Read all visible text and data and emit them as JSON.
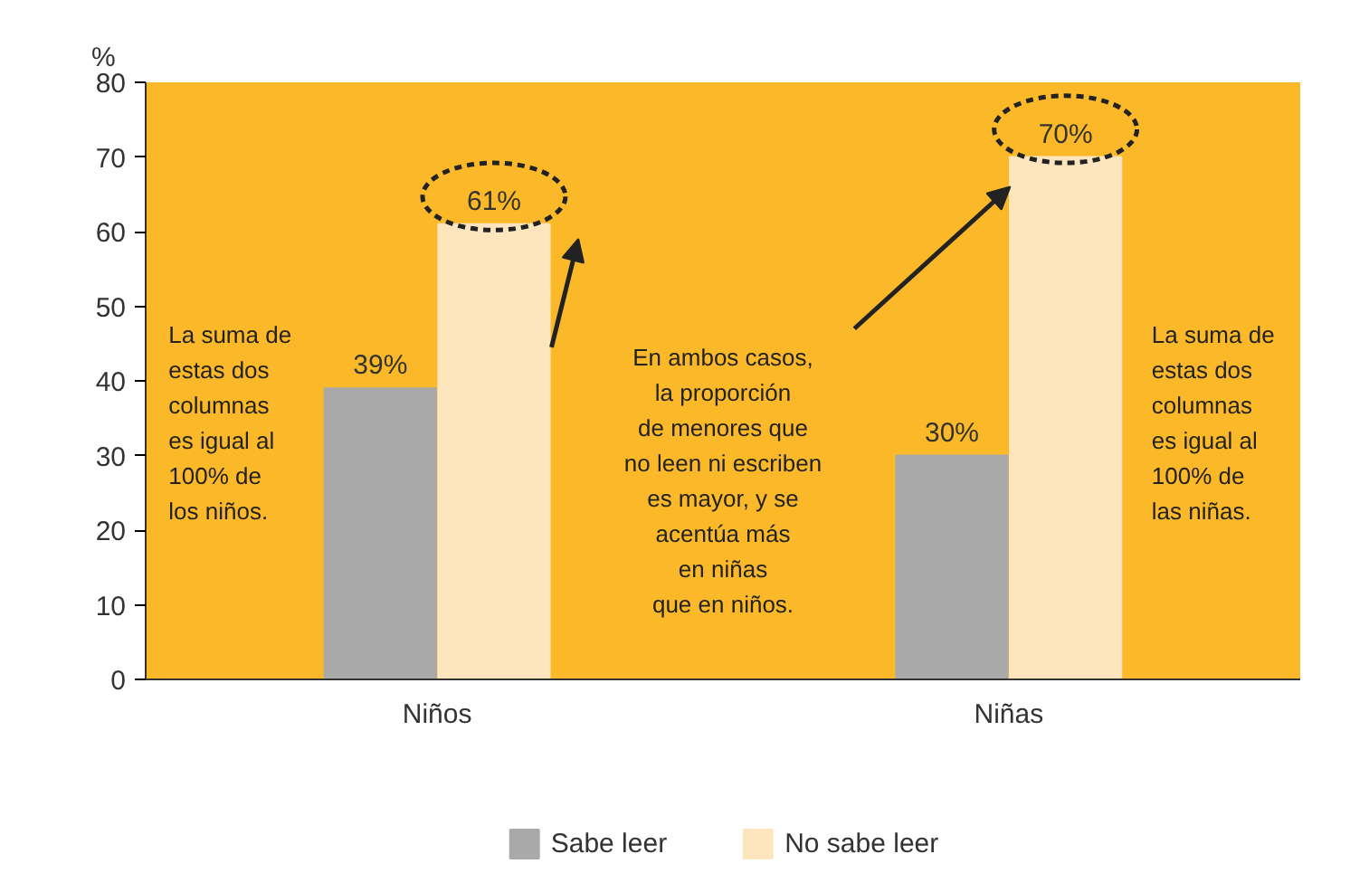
{
  "chart_data": {
    "type": "bar",
    "ylabel": "%",
    "categories": [
      "Niños",
      "Niñas"
    ],
    "series": [
      {
        "name": "Sabe leer",
        "color": "#a9a9a9",
        "values": [
          39,
          30
        ],
        "value_labels": [
          "39%",
          "30%"
        ]
      },
      {
        "name": "No sabe leer",
        "color": "#fde6bd",
        "values": [
          61,
          70
        ],
        "value_labels": [
          "61%",
          "70%"
        ]
      }
    ],
    "ylim": [
      0,
      80
    ],
    "yticks": [
      0,
      10,
      20,
      30,
      40,
      50,
      60,
      70,
      80
    ],
    "grid": false,
    "legend": "bottom",
    "annotations": [
      "La suma de\nestas dos\ncolumnas\nes igual al\n100% de\nlos niños.",
      "En ambos casos,\nla proporción\nde menores que\nno leen ni escriben\nes mayor, y se\nacentúa más\nen niñas\nque en niños.",
      "La suma de\nestas dos\ncolumnas\nes igual al\n100% de\nlas niñas."
    ]
  }
}
